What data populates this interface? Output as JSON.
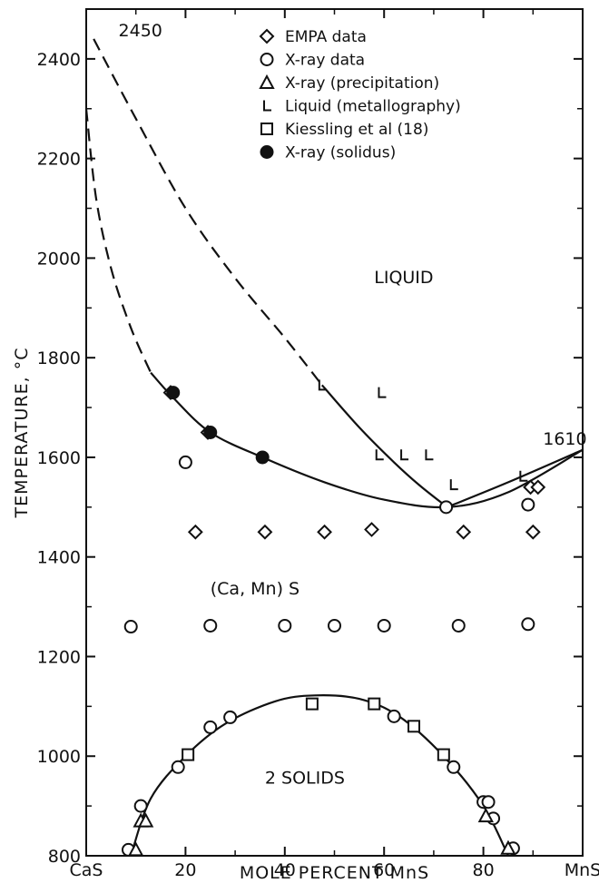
{
  "chart_data": {
    "type": "scatter",
    "title": "",
    "xlabel": "MOLE PERCENT MnS",
    "ylabel": "TEMPERATURE, °C",
    "xlim": [
      0,
      100
    ],
    "ylim": [
      800,
      2500
    ],
    "x_ticks": [
      {
        "value": 0,
        "label": "CaS"
      },
      {
        "value": 20,
        "label": "20"
      },
      {
        "value": 40,
        "label": "40"
      },
      {
        "value": 60,
        "label": "60"
      },
      {
        "value": 80,
        "label": "80"
      },
      {
        "value": 100,
        "label": "MnS"
      }
    ],
    "y_ticks": [
      {
        "value": 800,
        "label": "800"
      },
      {
        "value": 1000,
        "label": "1000"
      },
      {
        "value": 1200,
        "label": "1200"
      },
      {
        "value": 1400,
        "label": "1400"
      },
      {
        "value": 1600,
        "label": "1600"
      },
      {
        "value": 1800,
        "label": "1800"
      },
      {
        "value": 2000,
        "label": "2000"
      },
      {
        "value": 2200,
        "label": "2200"
      },
      {
        "value": 2400,
        "label": "2400"
      }
    ],
    "grid": false,
    "legend_position": "top-right",
    "annotations": [
      {
        "text": "2450",
        "x": 6.5,
        "y": 2445
      },
      {
        "text": "1610",
        "x": 92,
        "y": 1625
      },
      {
        "text": "LIQUID",
        "x": 58,
        "y": 1950
      },
      {
        "text": "(Ca, Mn) S",
        "x": 25,
        "y": 1325
      },
      {
        "text": "2 SOLIDS",
        "x": 36,
        "y": 945
      }
    ],
    "series": [
      {
        "name": "EMPA data",
        "marker": "diamond",
        "points": [
          [
            17,
            1730
          ],
          [
            24.5,
            1650
          ],
          [
            22,
            1450
          ],
          [
            36,
            1450
          ],
          [
            48,
            1450
          ],
          [
            57.5,
            1455
          ],
          [
            76,
            1450
          ],
          [
            89.5,
            1540
          ],
          [
            91,
            1540
          ],
          [
            90,
            1450
          ]
        ]
      },
      {
        "name": "X-ray data",
        "marker": "circle",
        "points": [
          [
            20,
            1590
          ],
          [
            72.5,
            1500
          ],
          [
            89,
            1505
          ],
          [
            9,
            1260
          ],
          [
            25,
            1262
          ],
          [
            40,
            1262
          ],
          [
            50,
            1262
          ],
          [
            60,
            1262
          ],
          [
            75,
            1262
          ],
          [
            89,
            1265
          ],
          [
            8.5,
            812
          ],
          [
            11,
            900
          ],
          [
            18.5,
            978
          ],
          [
            25,
            1058
          ],
          [
            29,
            1078
          ],
          [
            62,
            1080
          ],
          [
            74,
            978
          ],
          [
            80,
            908
          ],
          [
            81,
            908
          ],
          [
            82,
            875
          ],
          [
            86,
            815
          ]
        ]
      },
      {
        "name": "X-ray (precipitation)",
        "marker": "triangle",
        "points": [
          [
            10,
            812
          ],
          [
            11,
            870
          ],
          [
            12,
            870
          ],
          [
            80.5,
            880
          ],
          [
            85,
            815
          ]
        ]
      },
      {
        "name": "Liquid (metallography)",
        "marker": "L",
        "points": [
          [
            47.5,
            1745
          ],
          [
            59.5,
            1730
          ],
          [
            59,
            1605
          ],
          [
            64,
            1605
          ],
          [
            69,
            1605
          ],
          [
            74,
            1545
          ],
          [
            88,
            1562
          ]
        ]
      },
      {
        "name": "Kiessling et al (18)",
        "marker": "square",
        "points": [
          [
            20.5,
            1003
          ],
          [
            45.5,
            1105
          ],
          [
            58,
            1105
          ],
          [
            66,
            1060
          ],
          [
            72,
            1003
          ]
        ]
      },
      {
        "name": "X-ray (solidus)",
        "marker": "filled-circle",
        "points": [
          [
            17.5,
            1730
          ],
          [
            25,
            1650
          ],
          [
            35.5,
            1600
          ]
        ]
      }
    ],
    "curves": [
      {
        "name": "liquidus",
        "dashed": false,
        "points": [
          [
            47.5,
            1745
          ],
          [
            55,
            1660
          ],
          [
            62,
            1590
          ],
          [
            67,
            1545
          ],
          [
            72.7,
            1500
          ]
        ]
      },
      {
        "name": "liquidus",
        "dashed": true,
        "points": [
          [
            1.5,
            2440
          ],
          [
            10,
            2280
          ],
          [
            20,
            2100
          ],
          [
            30,
            1960
          ],
          [
            40,
            1840
          ],
          [
            47.5,
            1745
          ]
        ]
      },
      {
        "name": "liquidus",
        "dashed": false,
        "points": [
          [
            72.7,
            1500
          ],
          [
            85,
            1550
          ],
          [
            100,
            1615
          ]
        ]
      },
      {
        "name": "solidus",
        "dashed": true,
        "points": [
          [
            0,
            2300
          ],
          [
            2,
            2120
          ],
          [
            5,
            1980
          ],
          [
            9,
            1860
          ],
          [
            13,
            1770
          ]
        ]
      },
      {
        "name": "solidus",
        "dashed": false,
        "points": [
          [
            13,
            1770
          ],
          [
            17.5,
            1720
          ],
          [
            25,
            1650
          ],
          [
            35.5,
            1600
          ],
          [
            48,
            1550
          ],
          [
            60,
            1515
          ],
          [
            72.7,
            1500
          ],
          [
            85,
            1530
          ],
          [
            100,
            1615
          ]
        ]
      },
      {
        "name": "miscibility gap",
        "dashed": false,
        "points": [
          [
            9,
            800
          ],
          [
            13,
            915
          ],
          [
            20,
            1000
          ],
          [
            28,
            1065
          ],
          [
            38,
            1110
          ],
          [
            46,
            1122
          ],
          [
            55,
            1115
          ],
          [
            63,
            1080
          ],
          [
            72,
            1000
          ],
          [
            80,
            900
          ],
          [
            85,
            800
          ]
        ]
      }
    ]
  }
}
